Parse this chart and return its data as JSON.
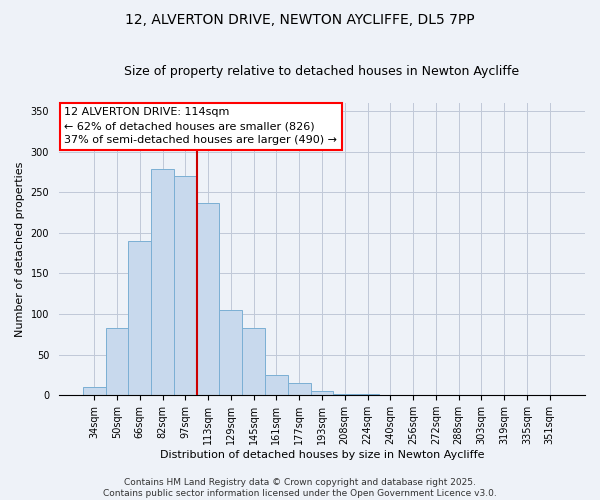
{
  "title_line1": "12, ALVERTON DRIVE, NEWTON AYCLIFFE, DL5 7PP",
  "title_line2": "Size of property relative to detached houses in Newton Aycliffe",
  "xlabel": "Distribution of detached houses by size in Newton Aycliffe",
  "ylabel": "Number of detached properties",
  "categories": [
    "34sqm",
    "50sqm",
    "66sqm",
    "82sqm",
    "97sqm",
    "113sqm",
    "129sqm",
    "145sqm",
    "161sqm",
    "177sqm",
    "193sqm",
    "208sqm",
    "224sqm",
    "240sqm",
    "256sqm",
    "272sqm",
    "288sqm",
    "303sqm",
    "319sqm",
    "335sqm",
    "351sqm"
  ],
  "values": [
    10,
    83,
    190,
    278,
    270,
    237,
    105,
    83,
    25,
    15,
    5,
    2,
    1,
    0,
    0,
    0,
    0,
    0,
    0,
    0,
    0
  ],
  "bar_color": "#C8D9ED",
  "bar_edge_color": "#7BAFD4",
  "vline_x": 4.5,
  "vline_color": "#CC0000",
  "annotation_title": "12 ALVERTON DRIVE: 114sqm",
  "annotation_line2": "← 62% of detached houses are smaller (826)",
  "annotation_line3": "37% of semi-detached houses are larger (490) →",
  "ylim": [
    0,
    360
  ],
  "yticks": [
    0,
    50,
    100,
    150,
    200,
    250,
    300,
    350
  ],
  "footer_line1": "Contains HM Land Registry data © Crown copyright and database right 2025.",
  "footer_line2": "Contains public sector information licensed under the Open Government Licence v3.0.",
  "background_color": "#EEF2F8",
  "grid_color": "#C0C8D8",
  "title_fontsize": 10,
  "subtitle_fontsize": 9,
  "axis_label_fontsize": 8,
  "tick_fontsize": 7,
  "annotation_fontsize": 8,
  "footer_fontsize": 6.5
}
